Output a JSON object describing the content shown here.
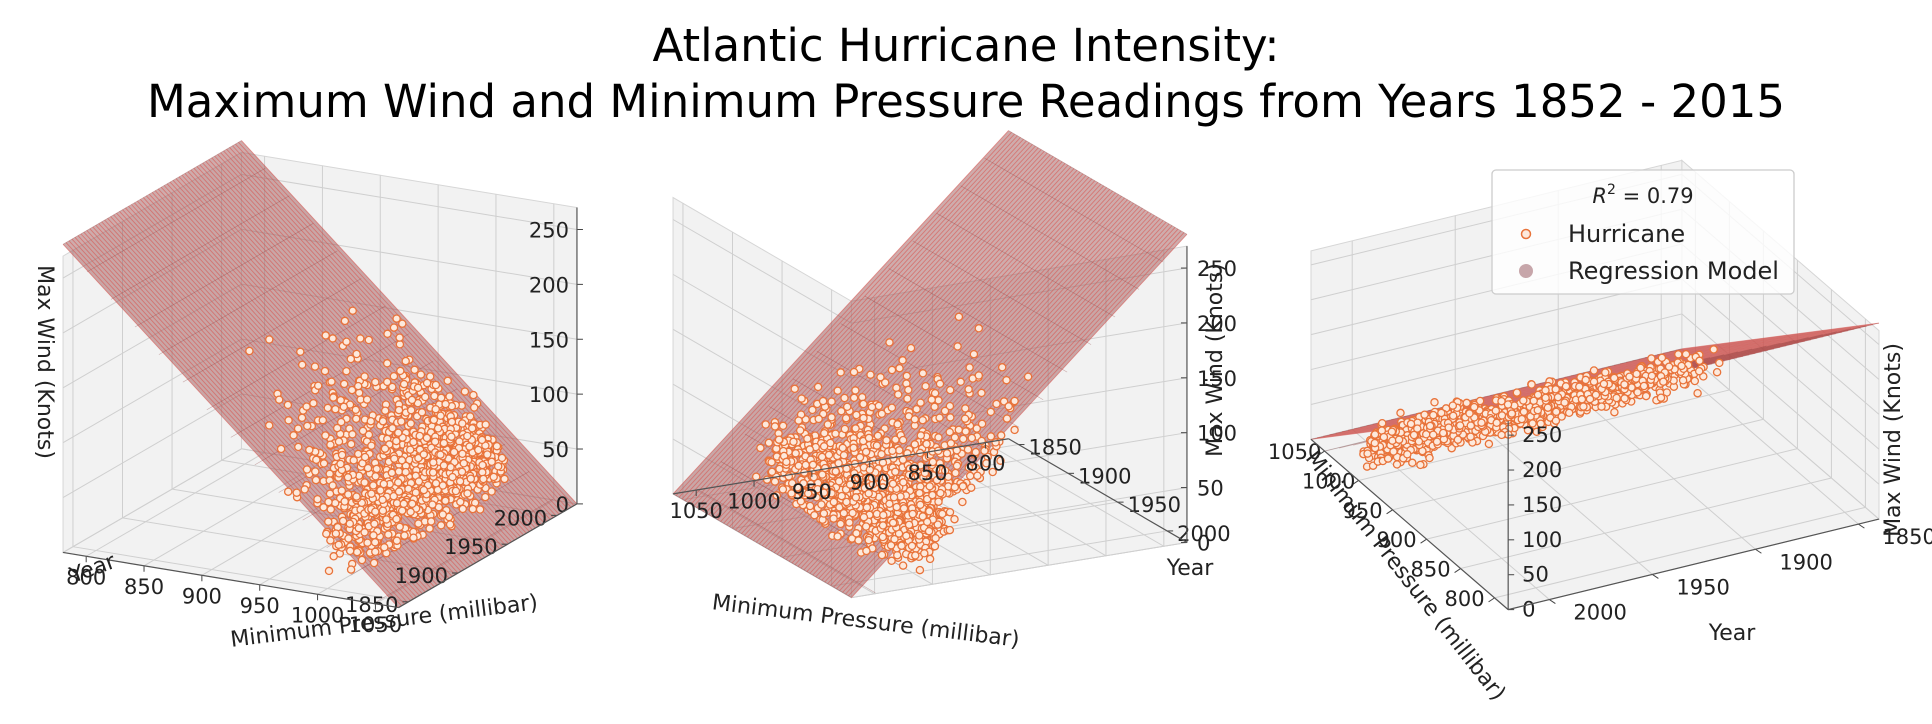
{
  "title": [
    "Atlantic Hurricane Intensity:",
    "Maximum Wind and Minimum Pressure Readings from Years 1852 - 2015"
  ],
  "chart_data": {
    "type": "scatter",
    "panels": 3,
    "axes": {
      "x": {
        "label": "Minimum Pressure (millibar)",
        "ticks": [
          800,
          850,
          900,
          950,
          1000,
          1050
        ],
        "lim": [
          780,
          1070
        ]
      },
      "y": {
        "label": "Year",
        "ticks": [
          1850,
          1900,
          1950,
          2000
        ],
        "lim": [
          1840,
          2020
        ]
      },
      "z": {
        "label": "Max Wind (Knots)",
        "ticks": [
          0,
          50,
          100,
          150,
          200,
          250
        ],
        "lim": [
          0,
          270
        ]
      }
    },
    "series": [
      {
        "name": "Hurricane",
        "kind": "scatter",
        "color": "#e8733a",
        "face": "#fde9dc",
        "pressure_range": [
          882,
          1024
        ],
        "year_range": [
          1852,
          2015
        ],
        "wind_range": [
          10,
          165
        ]
      },
      {
        "name": "Regression Model",
        "kind": "surface",
        "color": "#a05a5a",
        "line_color": "#d9534f",
        "fit": {
          "wind_at_1050": 0,
          "wind_at_800": 260
        }
      }
    ],
    "legend": {
      "position": "top-right (third panel)",
      "annotation": "R^2 = 0.79",
      "entries": [
        "Hurricane",
        "Regression Model"
      ]
    }
  }
}
